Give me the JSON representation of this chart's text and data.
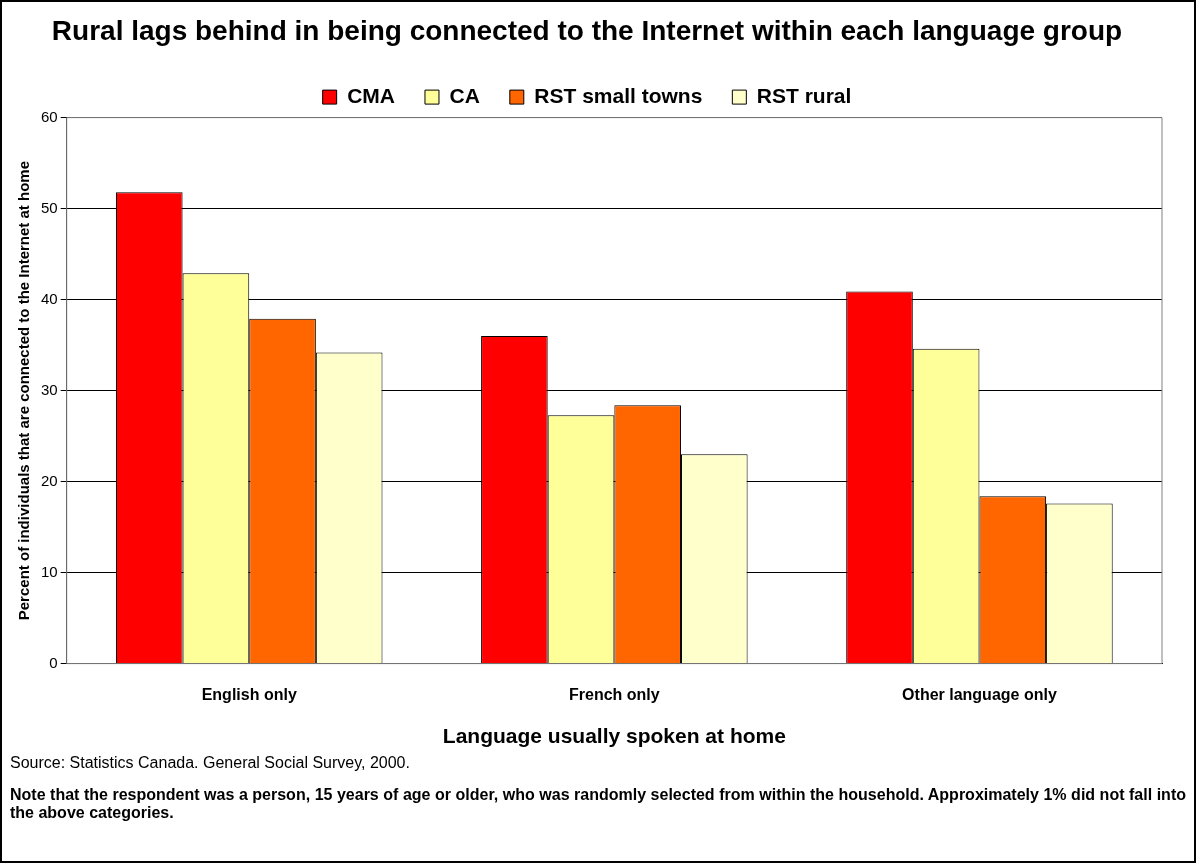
{
  "chart_data": {
    "type": "bar",
    "title": "Rural lags behind in being connected to the Internet within each language group",
    "xlabel": "Language usually spoken at home",
    "ylabel": "Percent of individuals that are connected to the Internet at home",
    "categories": [
      "English only",
      "French only",
      "Other language only"
    ],
    "series": [
      {
        "name": "CMA",
        "color": "#ff0000",
        "values": [
          51.8,
          36.0,
          40.9
        ]
      },
      {
        "name": "CA",
        "color": "#ffff99",
        "values": [
          42.9,
          27.3,
          34.6
        ]
      },
      {
        "name": "RST small towns",
        "color": "#ff6600",
        "values": [
          37.9,
          28.4,
          18.4
        ]
      },
      {
        "name": "RST rural",
        "color": "#ffffcc",
        "values": [
          34.2,
          23.0,
          17.6
        ]
      }
    ],
    "ylim": [
      0,
      60
    ],
    "yticks": [
      0,
      10,
      20,
      30,
      40,
      50,
      60
    ],
    "grid": "y",
    "legend": "top",
    "annotations": [
      "Source: Statistics Canada. General Social Survey, 2000.",
      "Note that the respondent was a person, 15 years of age or older, who was randomly selected from within the household. Approximately 1% did not fall into the above categories."
    ]
  }
}
